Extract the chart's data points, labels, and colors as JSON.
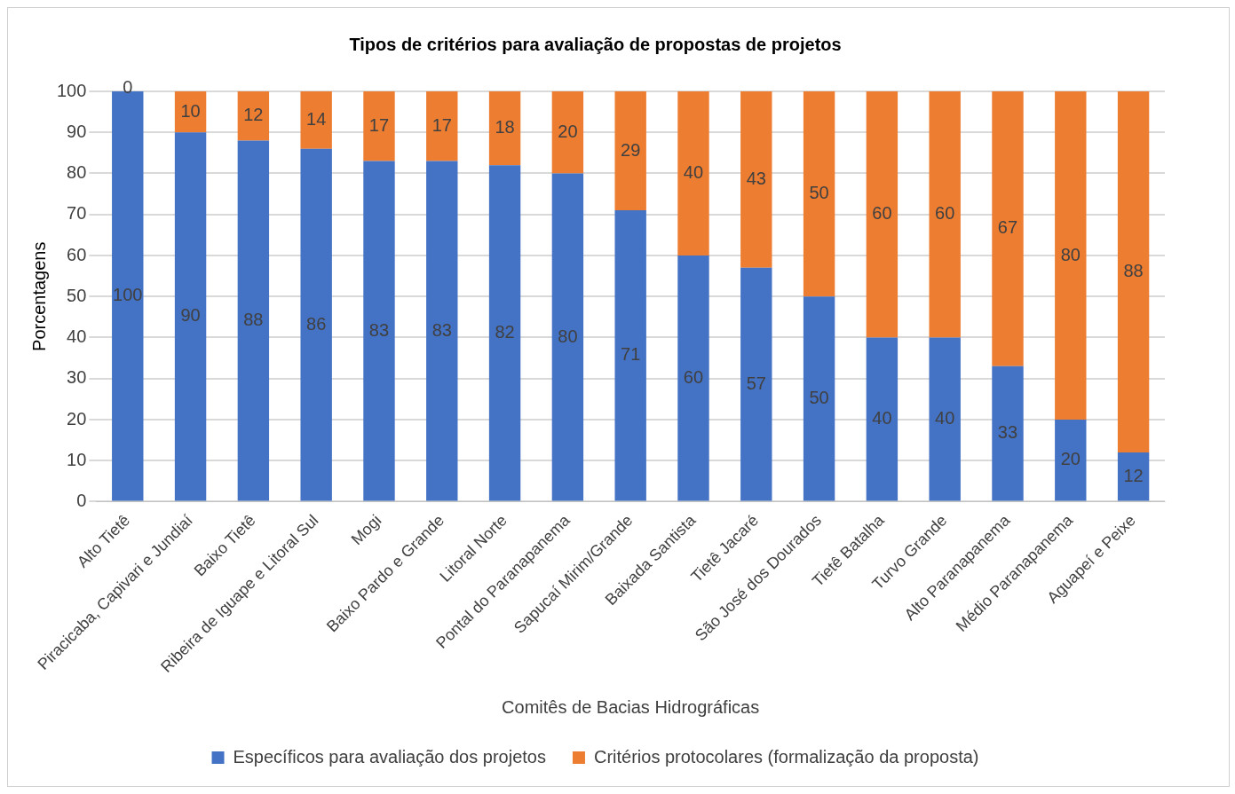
{
  "chart_data": {
    "type": "bar",
    "title": "Tipos de critérios para avaliação de propostas de projetos",
    "xlabel": "Comitês de Bacias Hidrográficas",
    "ylabel": "Porcentagens",
    "categories": [
      "Alto Tietê",
      "Piracicaba, Capivari e Jundiaí",
      "Baixo Tietê",
      "Ribeira de Iguape e Litoral Sul",
      "Mogi",
      "Baixo Pardo e Grande",
      "Litoral Norte",
      "Pontal do Paranapanema",
      "Sapucaí Mirim/Grande",
      "Baixada Santista",
      "Tietê Jacaré",
      "São José dos Dourados",
      "Tietê Batalha",
      "Turvo Grande",
      "Alto Paranapanema",
      "Médio Paranapanema",
      "Aguapeí e Peixe"
    ],
    "series": [
      {
        "name": "Específicos para avaliação dos projetos",
        "color": "#4472c4",
        "values": [
          100,
          90,
          88,
          86,
          83,
          83,
          82,
          80,
          71,
          60,
          57,
          50,
          40,
          40,
          33,
          20,
          12
        ]
      },
      {
        "name": "Critérios protocolares (formalização da proposta)",
        "color": "#ed7d31",
        "values": [
          0,
          10,
          12,
          14,
          17,
          17,
          18,
          20,
          29,
          40,
          43,
          50,
          60,
          60,
          67,
          80,
          88
        ]
      }
    ],
    "stacked": true,
    "ylim": [
      0,
      100
    ],
    "yticks": [
      0,
      10,
      20,
      30,
      40,
      50,
      60,
      70,
      80,
      90,
      100
    ],
    "grid": "y",
    "legend": "bottom",
    "data_labels": true
  }
}
